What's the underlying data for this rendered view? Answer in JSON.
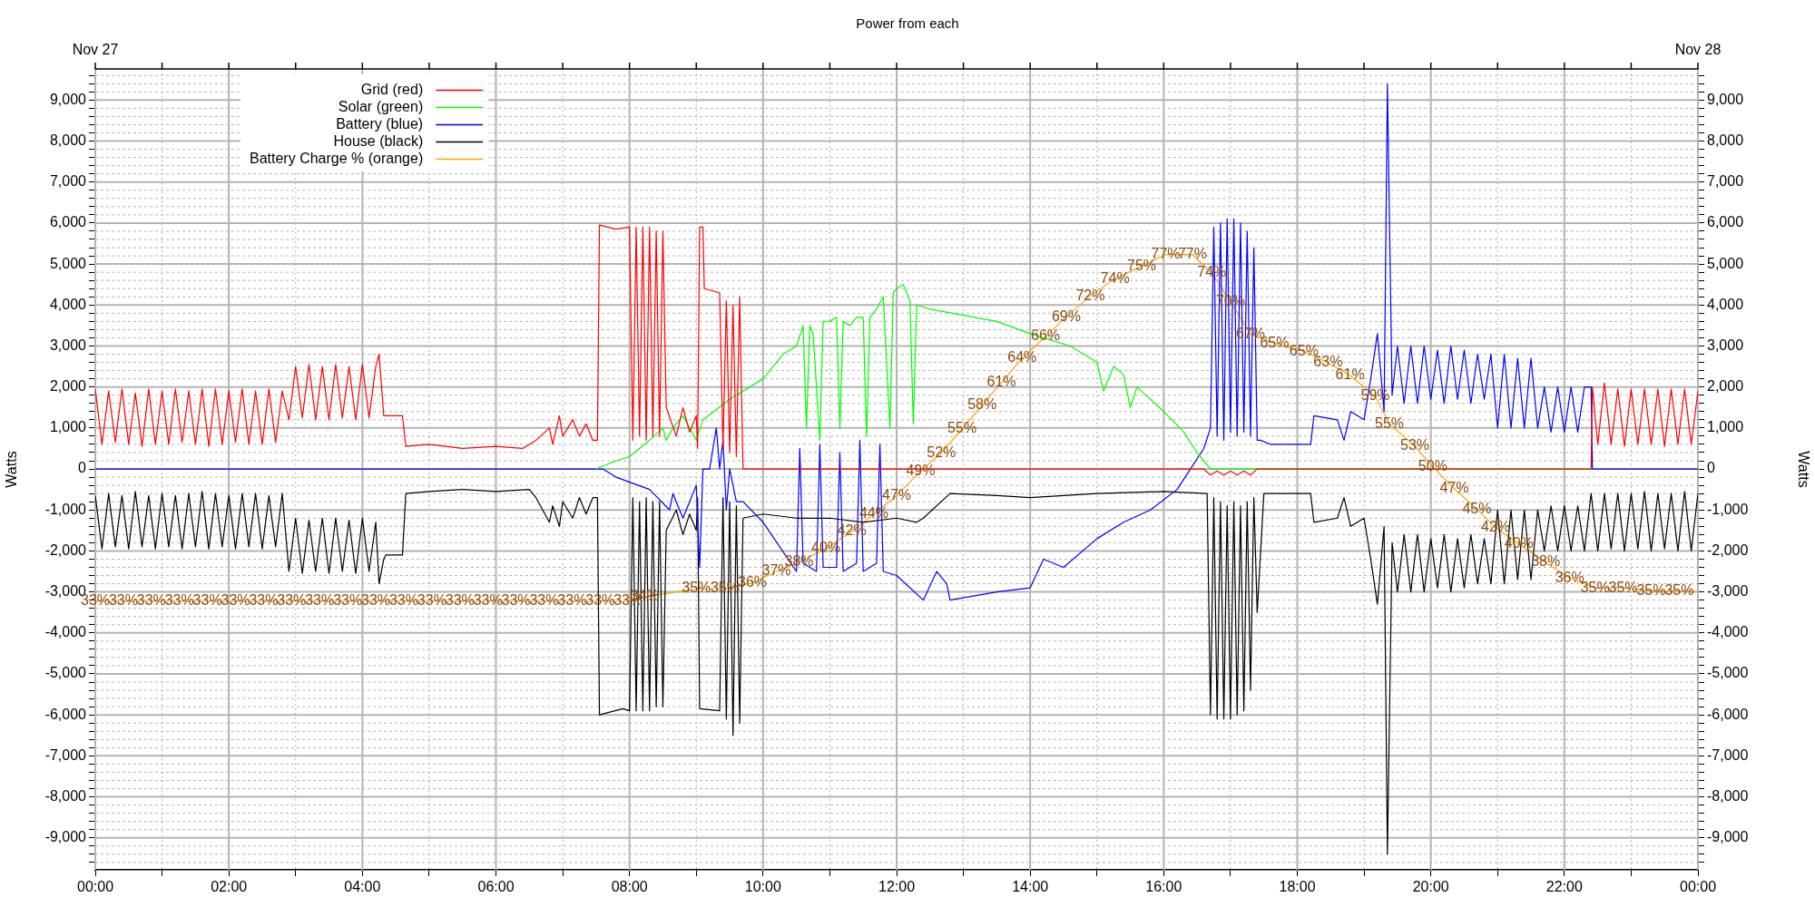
{
  "chart_data": {
    "type": "line",
    "title": "Power from each",
    "ylabel": "Watts",
    "y2label": "Watts",
    "grid": true,
    "legend": "top left",
    "xlim": [
      0,
      24
    ],
    "xticks": [
      {
        "value": 0,
        "label": "00:00"
      },
      {
        "value": 1,
        "label": null
      },
      {
        "value": 2,
        "label": "02:00"
      },
      {
        "value": 3,
        "label": null
      },
      {
        "value": 4,
        "label": "04:00"
      },
      {
        "value": 5,
        "label": null
      },
      {
        "value": 6,
        "label": "06:00"
      },
      {
        "value": 7,
        "label": null
      },
      {
        "value": 8,
        "label": "08:00"
      },
      {
        "value": 9,
        "label": null
      },
      {
        "value": 10,
        "label": "10:00"
      },
      {
        "value": 11,
        "label": null
      },
      {
        "value": 12,
        "label": "12:00"
      },
      {
        "value": 13,
        "label": null
      },
      {
        "value": 14,
        "label": "14:00"
      },
      {
        "value": 15,
        "label": null
      },
      {
        "value": 16,
        "label": "16:00"
      },
      {
        "value": 17,
        "label": null
      },
      {
        "value": 18,
        "label": "18:00"
      },
      {
        "value": 19,
        "label": null
      },
      {
        "value": 20,
        "label": "20:00"
      },
      {
        "value": 21,
        "label": null
      },
      {
        "value": 22,
        "label": "22:00"
      },
      {
        "value": 23,
        "label": null
      },
      {
        "value": 24,
        "label": "00:00"
      }
    ],
    "annotations": [
      "Nov 27",
      "Nov 28",
      {
        "text": "33%",
        "x": 0,
        "y": -3230
      },
      {
        "text": "33%",
        "x": 0.42,
        "y": -3230
      },
      {
        "text": "33%",
        "x": 0.84,
        "y": -3230
      },
      {
        "text": "33%",
        "x": 1.26,
        "y": -3230
      },
      {
        "text": "33%",
        "x": 1.68,
        "y": -3230
      },
      {
        "text": "33%",
        "x": 2.1,
        "y": -3230
      },
      {
        "text": "33%",
        "x": 2.52,
        "y": -3230
      },
      {
        "text": "33%",
        "x": 2.94,
        "y": -3230
      },
      {
        "text": "33%",
        "x": 3.36,
        "y": -3230
      },
      {
        "text": "33%",
        "x": 3.78,
        "y": -3230
      },
      {
        "text": "33%",
        "x": 4.2,
        "y": -3230
      },
      {
        "text": "33%",
        "x": 4.62,
        "y": -3230
      },
      {
        "text": "33%",
        "x": 5.04,
        "y": -3230
      },
      {
        "text": "33%",
        "x": 5.46,
        "y": -3230
      },
      {
        "text": "33%",
        "x": 5.88,
        "y": -3230
      },
      {
        "text": "33%",
        "x": 6.3,
        "y": -3230
      },
      {
        "text": "33%",
        "x": 6.72,
        "y": -3230
      },
      {
        "text": "33%",
        "x": 7.14,
        "y": -3230
      },
      {
        "text": "33%",
        "x": 7.56,
        "y": -3230
      },
      {
        "text": "33%",
        "x": 7.98,
        "y": -3230
      },
      {
        "text": "34%",
        "x": 8.23,
        "y": -3120
      },
      {
        "text": "35%",
        "x": 9.0,
        "y": -2920
      },
      {
        "text": "35%",
        "x": 9.43,
        "y": -2920
      },
      {
        "text": "36%",
        "x": 9.84,
        "y": -2780
      },
      {
        "text": "37%",
        "x": 10.2,
        "y": -2500
      },
      {
        "text": "38%",
        "x": 10.54,
        "y": -2280
      },
      {
        "text": "40%",
        "x": 10.94,
        "y": -1940
      },
      {
        "text": "42%",
        "x": 11.33,
        "y": -1520
      },
      {
        "text": "44%",
        "x": 11.66,
        "y": -1100
      },
      {
        "text": "47%",
        "x": 12.0,
        "y": -650
      },
      {
        "text": "49%",
        "x": 12.36,
        "y": -50
      },
      {
        "text": "52%",
        "x": 12.67,
        "y": 390
      },
      {
        "text": "55%",
        "x": 12.98,
        "y": 980
      },
      {
        "text": "58%",
        "x": 13.28,
        "y": 1550
      },
      {
        "text": "61%",
        "x": 13.57,
        "y": 2110
      },
      {
        "text": "64%",
        "x": 13.88,
        "y": 2700
      },
      {
        "text": "66%",
        "x": 14.23,
        "y": 3230
      },
      {
        "text": "69%",
        "x": 14.54,
        "y": 3710
      },
      {
        "text": "72%",
        "x": 14.9,
        "y": 4220
      },
      {
        "text": "74%",
        "x": 15.27,
        "y": 4640
      },
      {
        "text": "75%",
        "x": 15.67,
        "y": 4950
      },
      {
        "text": "77%",
        "x": 16.03,
        "y": 5230
      },
      {
        "text": "77%",
        "x": 16.43,
        "y": 5230
      },
      {
        "text": "74%",
        "x": 16.72,
        "y": 4780
      },
      {
        "text": "70%",
        "x": 17.0,
        "y": 4080
      },
      {
        "text": "67%",
        "x": 17.3,
        "y": 3290
      },
      {
        "text": "65%",
        "x": 17.66,
        "y": 3070
      },
      {
        "text": "65%",
        "x": 18.1,
        "y": 2870
      },
      {
        "text": "63%",
        "x": 18.46,
        "y": 2590
      },
      {
        "text": "61%",
        "x": 18.79,
        "y": 2280
      },
      {
        "text": "59%",
        "x": 19.17,
        "y": 1770
      },
      {
        "text": "55%",
        "x": 19.38,
        "y": 1100
      },
      {
        "text": "53%",
        "x": 19.76,
        "y": 560
      },
      {
        "text": "50%",
        "x": 20.03,
        "y": 50
      },
      {
        "text": "47%",
        "x": 20.35,
        "y": -480
      },
      {
        "text": "45%",
        "x": 20.69,
        "y": -980
      },
      {
        "text": "42%",
        "x": 20.97,
        "y": -1430
      },
      {
        "text": "40%",
        "x": 21.32,
        "y": -1830
      },
      {
        "text": "38%",
        "x": 21.72,
        "y": -2280
      },
      {
        "text": "36%",
        "x": 22.08,
        "y": -2670
      },
      {
        "text": "35%",
        "x": 22.46,
        "y": -2900
      },
      {
        "text": "35%",
        "x": 22.88,
        "y": -2900
      },
      {
        "text": "35%",
        "x": 23.3,
        "y": -2980
      },
      {
        "text": "35%",
        "x": 23.72,
        "y": -2980
      }
    ],
    "ylim": [
      -9780,
      9760
    ],
    "yticks": [
      {
        "value": -9600,
        "label": null
      },
      {
        "value": -9400,
        "label": null
      },
      {
        "value": -9200,
        "label": null
      },
      {
        "value": -9000,
        "label": "-9,000"
      },
      {
        "value": -8800,
        "label": null
      },
      {
        "value": -8600,
        "label": null
      },
      {
        "value": -8400,
        "label": null
      },
      {
        "value": -8200,
        "label": null
      },
      {
        "value": -8000,
        "label": "-8,000"
      },
      {
        "value": -7800,
        "label": null
      },
      {
        "value": -7600,
        "label": null
      },
      {
        "value": -7400,
        "label": null
      },
      {
        "value": -7200,
        "label": null
      },
      {
        "value": -7000,
        "label": "-7,000"
      },
      {
        "value": -6800,
        "label": null
      },
      {
        "value": -6600,
        "label": null
      },
      {
        "value": -6400,
        "label": null
      },
      {
        "value": -6200,
        "label": null
      },
      {
        "value": -6000,
        "label": "-6,000"
      },
      {
        "value": -5800,
        "label": null
      },
      {
        "value": -5600,
        "label": null
      },
      {
        "value": -5400,
        "label": null
      },
      {
        "value": -5200,
        "label": null
      },
      {
        "value": -5000,
        "label": "-5,000"
      },
      {
        "value": -4800,
        "label": null
      },
      {
        "value": -4600,
        "label": null
      },
      {
        "value": -4400,
        "label": null
      },
      {
        "value": -4200,
        "label": null
      },
      {
        "value": -4000,
        "label": "-4,000"
      },
      {
        "value": -3800,
        "label": null
      },
      {
        "value": -3600,
        "label": null
      },
      {
        "value": -3400,
        "label": null
      },
      {
        "value": -3200,
        "label": null
      },
      {
        "value": -3000,
        "label": "-3,000"
      },
      {
        "value": -2800,
        "label": null
      },
      {
        "value": -2600,
        "label": null
      },
      {
        "value": -2400,
        "label": null
      },
      {
        "value": -2200,
        "label": null
      },
      {
        "value": -2000,
        "label": "-2,000"
      },
      {
        "value": -1800,
        "label": null
      },
      {
        "value": -1600,
        "label": null
      },
      {
        "value": -1400,
        "label": null
      },
      {
        "value": -1200,
        "label": null
      },
      {
        "value": -1000,
        "label": "-1,000"
      },
      {
        "value": -800,
        "label": null
      },
      {
        "value": -600,
        "label": null
      },
      {
        "value": -400,
        "label": null
      },
      {
        "value": -200,
        "label": null
      },
      0,
      {
        "value": 200,
        "label": null
      },
      {
        "value": 400,
        "label": null
      },
      {
        "value": 600,
        "label": null
      },
      {
        "value": 800,
        "label": null
      },
      {
        "value": 1000,
        "label": "1,000"
      },
      {
        "value": 1200,
        "label": null
      },
      {
        "value": 1400,
        "label": null
      },
      {
        "value": 1600,
        "label": null
      },
      {
        "value": 1800,
        "label": null
      },
      {
        "value": 2000,
        "label": "2,000"
      },
      {
        "value": 2200,
        "label": null
      },
      {
        "value": 2400,
        "label": null
      },
      {
        "value": 2600,
        "label": null
      },
      {
        "value": 2800,
        "label": null
      },
      {
        "value": 3000,
        "label": "3,000"
      },
      {
        "value": 3200,
        "label": null
      },
      {
        "value": 3400,
        "label": null
      },
      {
        "value": 3600,
        "label": null
      },
      {
        "value": 3800,
        "label": null
      },
      {
        "value": 4000,
        "label": "4,000"
      },
      {
        "value": 4200,
        "label": null
      },
      {
        "value": 4400,
        "label": null
      },
      {
        "value": 4600,
        "label": null
      },
      {
        "value": 4800,
        "label": null
      },
      {
        "value": 5000,
        "label": "5,000"
      },
      {
        "value": 5200,
        "label": null
      },
      {
        "value": 5400,
        "label": null
      },
      {
        "value": 5600,
        "label": null
      },
      {
        "value": 5800,
        "label": null
      },
      {
        "value": 6000,
        "label": "6,000"
      },
      {
        "value": 6200,
        "label": null
      },
      {
        "value": 6400,
        "label": null
      },
      {
        "value": 6600,
        "label": null
      },
      {
        "value": 6800,
        "label": null
      },
      {
        "value": 7000,
        "label": "7,000"
      },
      {
        "value": 7200,
        "label": null
      },
      {
        "value": 7400,
        "label": null
      },
      {
        "value": 7600,
        "label": null
      },
      {
        "value": 7800,
        "label": null
      },
      {
        "value": 8000,
        "label": "8,000"
      },
      {
        "value": 8200,
        "label": null
      },
      {
        "value": 8400,
        "label": null
      },
      {
        "value": 8600,
        "label": null
      },
      {
        "value": 8800,
        "label": null
      },
      {
        "value": 9000,
        "label": "9,000"
      },
      {
        "value": 9200,
        "label": null
      },
      {
        "value": 9400,
        "label": null
      },
      {
        "value": 9600,
        "label": null
      }
    ],
    "y2lim": [
      -9780,
      9760
    ],
    "y2ticks": [
      {
        "value": -9600,
        "label": null
      },
      {
        "value": -9400,
        "label": null
      },
      {
        "value": -9200,
        "label": null
      },
      {
        "value": -9000,
        "label": "-9,000"
      },
      {
        "value": -8800,
        "label": null
      },
      {
        "value": -8600,
        "label": null
      },
      {
        "value": -8400,
        "label": null
      },
      {
        "value": -8200,
        "label": null
      },
      {
        "value": -8000,
        "label": "-8,000"
      },
      {
        "value": -7800,
        "label": null
      },
      {
        "value": -7600,
        "label": null
      },
      {
        "value": -7400,
        "label": null
      },
      {
        "value": -7200,
        "label": null
      },
      {
        "value": -7000,
        "label": "-7,000"
      },
      {
        "value": -6800,
        "label": null
      },
      {
        "value": -6600,
        "label": null
      },
      {
        "value": -6400,
        "label": null
      },
      {
        "value": -6200,
        "label": null
      },
      {
        "value": -6000,
        "label": "-6,000"
      },
      {
        "value": -5800,
        "label": null
      },
      {
        "value": -5600,
        "label": null
      },
      {
        "value": -5400,
        "label": null
      },
      {
        "value": -5200,
        "label": null
      },
      {
        "value": -5000,
        "label": "-5,000"
      },
      {
        "value": -4800,
        "label": null
      },
      {
        "value": -4600,
        "label": null
      },
      {
        "value": -4400,
        "label": null
      },
      {
        "value": -4200,
        "label": null
      },
      {
        "value": -4000,
        "label": "-4,000"
      },
      {
        "value": -3800,
        "label": null
      },
      {
        "value": -3600,
        "label": null
      },
      {
        "value": -3400,
        "label": null
      },
      {
        "value": -3200,
        "label": null
      },
      {
        "value": -3000,
        "label": "-3,000"
      },
      {
        "value": -2800,
        "label": null
      },
      {
        "value": -2600,
        "label": null
      },
      {
        "value": -2400,
        "label": null
      },
      {
        "value": -2200,
        "label": null
      },
      {
        "value": -2000,
        "label": "-2,000"
      },
      {
        "value": -1800,
        "label": null
      },
      {
        "value": -1600,
        "label": null
      },
      {
        "value": -1400,
        "label": null
      },
      {
        "value": -1200,
        "label": null
      },
      {
        "value": -1000,
        "label": "-1,000"
      },
      {
        "value": -800,
        "label": null
      },
      {
        "value": -600,
        "label": null
      },
      {
        "value": -400,
        "label": null
      },
      {
        "value": -200,
        "label": null
      },
      0,
      {
        "value": 200,
        "label": null
      },
      {
        "value": 400,
        "label": null
      },
      {
        "value": 600,
        "label": null
      },
      {
        "value": 800,
        "label": null
      },
      {
        "value": 1000,
        "label": "1,000"
      },
      {
        "value": 1200,
        "label": null
      },
      {
        "value": 1400,
        "label": null
      },
      {
        "value": 1600,
        "label": null
      },
      {
        "value": 1800,
        "label": null
      },
      {
        "value": 2000,
        "label": "2,000"
      },
      {
        "value": 2200,
        "label": null
      },
      {
        "value": 2400,
        "label": null
      },
      {
        "value": 2600,
        "label": null
      },
      {
        "value": 2800,
        "label": null
      },
      {
        "value": 3000,
        "label": "3,000"
      },
      {
        "value": 3200,
        "label": null
      },
      {
        "value": 3400,
        "label": null
      },
      {
        "value": 3600,
        "label": null
      },
      {
        "value": 3800,
        "label": null
      },
      {
        "value": 4000,
        "label": "4,000"
      },
      {
        "value": 4200,
        "label": null
      },
      {
        "value": 4400,
        "label": null
      },
      {
        "value": 4600,
        "label": null
      },
      {
        "value": 4800,
        "label": null
      },
      {
        "value": 5000,
        "label": "5,000"
      },
      {
        "value": 5200,
        "label": null
      },
      {
        "value": 5400,
        "label": null
      },
      {
        "value": 5600,
        "label": null
      },
      {
        "value": 5800,
        "label": null
      },
      {
        "value": 6000,
        "label": "6,000"
      },
      {
        "value": 6200,
        "label": null
      },
      {
        "value": 6400,
        "label": null
      },
      {
        "value": 6600,
        "label": null
      },
      {
        "value": 6800,
        "label": null
      },
      {
        "value": 7000,
        "label": "7,000"
      },
      {
        "value": 7200,
        "label": null
      },
      {
        "value": 7400,
        "label": null
      },
      {
        "value": 7600,
        "label": null
      },
      {
        "value": 7800,
        "label": null
      },
      {
        "value": 8000,
        "label": "8,000"
      },
      {
        "value": 8200,
        "label": null
      },
      {
        "value": 8400,
        "label": null
      },
      {
        "value": 8600,
        "label": null
      },
      {
        "value": 8800,
        "label": null
      },
      {
        "value": 9000,
        "label": "9,000"
      },
      {
        "value": 9200,
        "label": null
      },
      {
        "value": 9400,
        "label": null
      },
      {
        "value": 9600,
        "label": null
      }
    ],
    "series": [
      {
        "name": "Grid (red)",
        "color": "#ff0000",
        "x": [
          0,
          0.1,
          0.2,
          0.3,
          0.4,
          0.5,
          0.6,
          0.7,
          0.8,
          0.9,
          1.0,
          1.1,
          1.2,
          1.3,
          1.4,
          1.5,
          1.6,
          1.7,
          1.8,
          1.9,
          2.0,
          2.1,
          2.2,
          2.3,
          2.4,
          2.5,
          2.6,
          2.7,
          2.8,
          2.9,
          3.0,
          3.1,
          3.2,
          3.3,
          3.4,
          3.5,
          3.6,
          3.7,
          3.8,
          3.9,
          4.0,
          4.1,
          4.2,
          4.25,
          4.32,
          4.6,
          4.65,
          5.0,
          5.5,
          6.0,
          6.4,
          6.6,
          6.8,
          6.85,
          6.95,
          7.0,
          7.15,
          7.25,
          7.35,
          7.45,
          7.52,
          7.55,
          7.8,
          8.0,
          8.05,
          8.1,
          8.15,
          8.2,
          8.25,
          8.3,
          8.35,
          8.4,
          8.45,
          8.5,
          8.55,
          8.7,
          8.8,
          8.9,
          9.0,
          9.02,
          9.05,
          9.1,
          9.12,
          9.35,
          9.4,
          9.45,
          9.5,
          9.55,
          9.6,
          9.65,
          9.7,
          16.6,
          16.7,
          16.8,
          16.9,
          17.0,
          17.1,
          17.2,
          17.3,
          17.4,
          22.4,
          22.42,
          22.5,
          22.6,
          22.7,
          22.8,
          22.9,
          23.0,
          23.1,
          23.2,
          23.3,
          23.4,
          23.5,
          23.6,
          23.7,
          23.8,
          23.9,
          24.0
        ],
        "values": [
          1950,
          600,
          1900,
          650,
          1950,
          600,
          1850,
          550,
          1950,
          600,
          1900,
          600,
          1950,
          650,
          1900,
          600,
          1950,
          550,
          1950,
          600,
          1900,
          650,
          1950,
          600,
          1900,
          600,
          1950,
          650,
          1900,
          1200,
          2500,
          1250,
          2550,
          1200,
          2500,
          1200,
          2550,
          1250,
          2500,
          1200,
          2550,
          1250,
          2500,
          2800,
          1300,
          1300,
          550,
          600,
          500,
          550,
          500,
          700,
          1000,
          600,
          1300,
          800,
          1200,
          800,
          1100,
          700,
          700,
          5950,
          5850,
          5900,
          700,
          5900,
          800,
          5900,
          700,
          5900,
          800,
          5800,
          800,
          5800,
          1500,
          800,
          1500,
          900,
          1300,
          500,
          5900,
          5900,
          4400,
          4300,
          500,
          4100,
          400,
          4000,
          300,
          4200,
          0,
          0,
          -150,
          -50,
          -150,
          -50,
          -150,
          -50,
          -150,
          0,
          0,
          2000,
          600,
          2100,
          600,
          1950,
          550,
          1950,
          600,
          1950,
          600,
          1950,
          550,
          1950,
          600,
          1950,
          600,
          1900
        ]
      },
      {
        "name": "Solar (green)",
        "color": "#00ff00",
        "x": [
          7.5,
          7.8,
          8.0,
          8.3,
          8.5,
          8.55,
          8.65,
          8.8,
          9.0,
          9.1,
          9.5,
          10.0,
          10.3,
          10.5,
          10.6,
          10.65,
          10.7,
          10.75,
          10.85,
          10.9,
          11.0,
          11.1,
          11.15,
          11.2,
          11.3,
          11.4,
          11.5,
          11.55,
          11.6,
          11.7,
          11.8,
          11.9,
          11.95,
          12.0,
          12.1,
          12.2,
          12.25,
          12.3,
          12.5,
          13.0,
          13.5,
          14.0,
          14.2,
          14.6,
          15.0,
          15.1,
          15.25,
          15.4,
          15.5,
          15.6,
          16.0,
          16.3,
          16.5,
          16.7,
          22.4
        ],
        "values": [
          0,
          200,
          300,
          700,
          1000,
          700,
          1000,
          1300,
          700,
          1200,
          1700,
          2200,
          2800,
          3000,
          3500,
          1000,
          3500,
          3300,
          700,
          3600,
          3600,
          3700,
          1000,
          3600,
          3500,
          3700,
          3700,
          800,
          3700,
          3900,
          4200,
          1000,
          4300,
          4400,
          4500,
          4100,
          1100,
          4000,
          3900,
          3750,
          3600,
          3300,
          3200,
          3000,
          2600,
          1900,
          2500,
          2300,
          1500,
          2000,
          1400,
          900,
          400,
          0,
          0
        ]
      },
      {
        "name": "Battery (blue)",
        "color": "#0000ff",
        "x": [
          0,
          7.6,
          7.8,
          8.3,
          8.6,
          8.65,
          8.8,
          9.0,
          9.05,
          9.1,
          9.2,
          9.3,
          9.35,
          9.4,
          9.45,
          9.5,
          9.6,
          9.7,
          10.0,
          10.5,
          10.55,
          10.6,
          10.8,
          10.85,
          10.9,
          11.1,
          11.15,
          11.2,
          11.4,
          11.45,
          11.5,
          11.7,
          11.75,
          11.8,
          12.0,
          12.4,
          12.6,
          12.75,
          12.8,
          13.5,
          14.0,
          14.2,
          14.5,
          15.0,
          15.4,
          15.8,
          16.2,
          16.4,
          16.6,
          16.7,
          16.75,
          16.8,
          16.85,
          16.9,
          16.95,
          17.0,
          17.05,
          17.1,
          17.15,
          17.2,
          17.25,
          17.3,
          17.35,
          17.4,
          17.45,
          17.6,
          18.2,
          18.25,
          18.6,
          18.7,
          18.8,
          19.0,
          19.1,
          19.2,
          19.3,
          19.35,
          19.42,
          19.5,
          19.6,
          19.7,
          19.8,
          19.9,
          20.0,
          20.1,
          20.2,
          20.3,
          20.4,
          20.5,
          20.6,
          20.7,
          20.8,
          20.9,
          21.0,
          21.1,
          21.2,
          21.3,
          21.4,
          21.5,
          21.6,
          21.7,
          21.8,
          21.9,
          22.0,
          22.1,
          22.2,
          22.3,
          22.4,
          22.42,
          24
        ],
        "values": [
          0,
          0,
          -200,
          -500,
          -1000,
          -600,
          -1200,
          -400,
          -2400,
          0,
          0,
          1000,
          0,
          700,
          -1000,
          0,
          -800,
          -800,
          -1300,
          -2500,
          500,
          -2300,
          -2500,
          600,
          -2400,
          -2400,
          400,
          -2500,
          -2300,
          700,
          -2500,
          -2300,
          600,
          -2500,
          -2600,
          -3200,
          -2500,
          -2800,
          -3200,
          -3000,
          -2900,
          -2200,
          -2400,
          -1700,
          -1300,
          -1000,
          -500,
          0,
          500,
          1000,
          5900,
          800,
          6000,
          700,
          6100,
          900,
          6100,
          800,
          6000,
          900,
          5800,
          800,
          5400,
          700,
          700,
          600,
          600,
          1300,
          1200,
          700,
          1400,
          1200,
          2200,
          3300,
          1400,
          9400,
          1800,
          3000,
          1600,
          3000,
          1600,
          3000,
          1700,
          2900,
          1600,
          3000,
          1700,
          2900,
          1600,
          2800,
          1700,
          2800,
          1000,
          2800,
          1000,
          2700,
          1000,
          2700,
          1000,
          2000,
          900,
          2000,
          900,
          2000,
          900,
          2000,
          2000,
          0,
          0
        ]
      },
      {
        "name": "House (black)",
        "color": "#000000",
        "x": [
          0,
          0.1,
          0.2,
          0.3,
          0.4,
          0.5,
          0.6,
          0.7,
          0.8,
          0.9,
          1.0,
          1.1,
          1.2,
          1.3,
          1.4,
          1.5,
          1.6,
          1.7,
          1.8,
          1.9,
          2.0,
          2.1,
          2.2,
          2.3,
          2.4,
          2.5,
          2.6,
          2.7,
          2.8,
          2.9,
          3.0,
          3.1,
          3.2,
          3.3,
          3.4,
          3.5,
          3.6,
          3.7,
          3.8,
          3.9,
          4.0,
          4.1,
          4.2,
          4.25,
          4.32,
          4.35,
          4.6,
          4.65,
          5.0,
          5.5,
          6.0,
          6.5,
          6.6,
          6.8,
          6.85,
          6.95,
          7.0,
          7.15,
          7.25,
          7.35,
          7.45,
          7.52,
          7.55,
          7.9,
          8.0,
          8.05,
          8.1,
          8.15,
          8.2,
          8.25,
          8.3,
          8.35,
          8.4,
          8.45,
          8.5,
          8.55,
          8.7,
          8.8,
          8.9,
          9.0,
          9.02,
          9.05,
          9.35,
          9.4,
          9.45,
          9.5,
          9.55,
          9.6,
          9.65,
          9.7,
          10.0,
          10.5,
          11.0,
          11.5,
          12.0,
          12.3,
          12.4,
          12.8,
          13.5,
          14.0,
          15.0,
          16.0,
          16.65,
          16.7,
          16.75,
          16.8,
          16.85,
          16.9,
          16.95,
          17.0,
          17.05,
          17.1,
          17.15,
          17.2,
          17.25,
          17.3,
          17.35,
          17.4,
          17.5,
          18.2,
          18.25,
          18.6,
          18.7,
          18.8,
          19.0,
          19.1,
          19.2,
          19.3,
          19.35,
          19.42,
          19.5,
          19.6,
          19.7,
          19.8,
          19.9,
          20.0,
          20.1,
          20.2,
          20.3,
          20.4,
          20.5,
          20.6,
          20.7,
          20.8,
          20.9,
          21.0,
          21.1,
          21.2,
          21.3,
          21.4,
          21.5,
          21.6,
          21.7,
          21.8,
          21.9,
          22.0,
          22.1,
          22.2,
          22.3,
          22.4,
          22.5,
          22.6,
          22.7,
          22.8,
          22.9,
          23.0,
          23.1,
          23.2,
          23.3,
          23.4,
          23.5,
          23.6,
          23.7,
          23.8,
          23.9,
          24.0
        ],
        "values": [
          -650,
          -1950,
          -600,
          -1900,
          -650,
          -1950,
          -550,
          -1900,
          -650,
          -1950,
          -600,
          -1900,
          -650,
          -1950,
          -600,
          -1900,
          -550,
          -1950,
          -600,
          -1900,
          -650,
          -1950,
          -600,
          -1900,
          -600,
          -1950,
          -650,
          -1900,
          -600,
          -2500,
          -1200,
          -2550,
          -1250,
          -2500,
          -1200,
          -2550,
          -1200,
          -2500,
          -1250,
          -2550,
          -1200,
          -2500,
          -1300,
          -2800,
          -2200,
          -2100,
          -2100,
          -600,
          -550,
          -500,
          -550,
          -500,
          -700,
          -1300,
          -900,
          -1400,
          -800,
          -1200,
          -700,
          -1100,
          -700,
          -700,
          -6000,
          -5850,
          -5900,
          -700,
          -5900,
          -800,
          -5900,
          -700,
          -5900,
          -800,
          -5800,
          -800,
          -5800,
          -1500,
          -1000,
          -1600,
          -1100,
          -1500,
          -700,
          -5850,
          -5900,
          -700,
          -6100,
          -800,
          -6500,
          -900,
          -6200,
          -1200,
          -1100,
          -1200,
          -1200,
          -1300,
          -1200,
          -1300,
          -1200,
          -600,
          -650,
          -700,
          -600,
          -550,
          -600,
          -6000,
          -700,
          -6100,
          -800,
          -6100,
          -900,
          -6100,
          -800,
          -6000,
          -900,
          -5900,
          -800,
          -5400,
          -700,
          -3500,
          -600,
          -600,
          -1300,
          -1200,
          -700,
          -1400,
          -1200,
          -2200,
          -3300,
          -1400,
          -9400,
          -1800,
          -3000,
          -1600,
          -3000,
          -1600,
          -3000,
          -1700,
          -2900,
          -1600,
          -3000,
          -1700,
          -2900,
          -1600,
          -2800,
          -1700,
          -2800,
          -1000,
          -2800,
          -1000,
          -2700,
          -1000,
          -2700,
          -1000,
          -2000,
          -900,
          -2000,
          -900,
          -2000,
          -900,
          -2000,
          -600,
          -2000,
          -600,
          -1950,
          -600,
          -2000,
          -600,
          -1950,
          -550,
          -2000,
          -600,
          -1950,
          -600,
          -2000,
          -550,
          -2000,
          -600
        ]
      },
      {
        "name": "Battery Charge % (orange)",
        "color": "#ffa500",
        "x": [
          0,
          0.42,
          0.84,
          1.26,
          1.68,
          2.1,
          2.52,
          2.94,
          3.36,
          3.78,
          4.2,
          4.62,
          5.04,
          5.46,
          5.88,
          6.3,
          6.72,
          7.14,
          7.56,
          7.98,
          8.23,
          9.0,
          9.43,
          9.84,
          10.2,
          10.54,
          10.94,
          11.33,
          11.66,
          12.0,
          12.36,
          12.67,
          12.98,
          13.28,
          13.57,
          13.88,
          14.23,
          14.54,
          14.9,
          15.27,
          15.67,
          16.03,
          16.43,
          16.72,
          17.0,
          17.3,
          17.66,
          18.1,
          18.46,
          18.79,
          19.17,
          19.38,
          19.76,
          20.03,
          20.35,
          20.69,
          20.97,
          21.32,
          21.72,
          22.08,
          22.46,
          22.88,
          23.3,
          23.72,
          24
        ],
        "values": [
          -3230,
          -3230,
          -3230,
          -3230,
          -3230,
          -3230,
          -3230,
          -3230,
          -3230,
          -3230,
          -3230,
          -3230,
          -3230,
          -3230,
          -3230,
          -3230,
          -3230,
          -3230,
          -3230,
          -3230,
          -3120,
          -2920,
          -2920,
          -2780,
          -2500,
          -2280,
          -1940,
          -1520,
          -1100,
          -650,
          -50,
          390,
          980,
          1550,
          2110,
          2700,
          3230,
          3710,
          4220,
          4640,
          4950,
          5230,
          5230,
          4780,
          4080,
          3290,
          3070,
          2870,
          2590,
          2280,
          1770,
          1100,
          560,
          50,
          -480,
          -980,
          -1430,
          -1830,
          -2280,
          -2670,
          -2900,
          -2900,
          -2980,
          -2980,
          -3000
        ]
      }
    ]
  }
}
